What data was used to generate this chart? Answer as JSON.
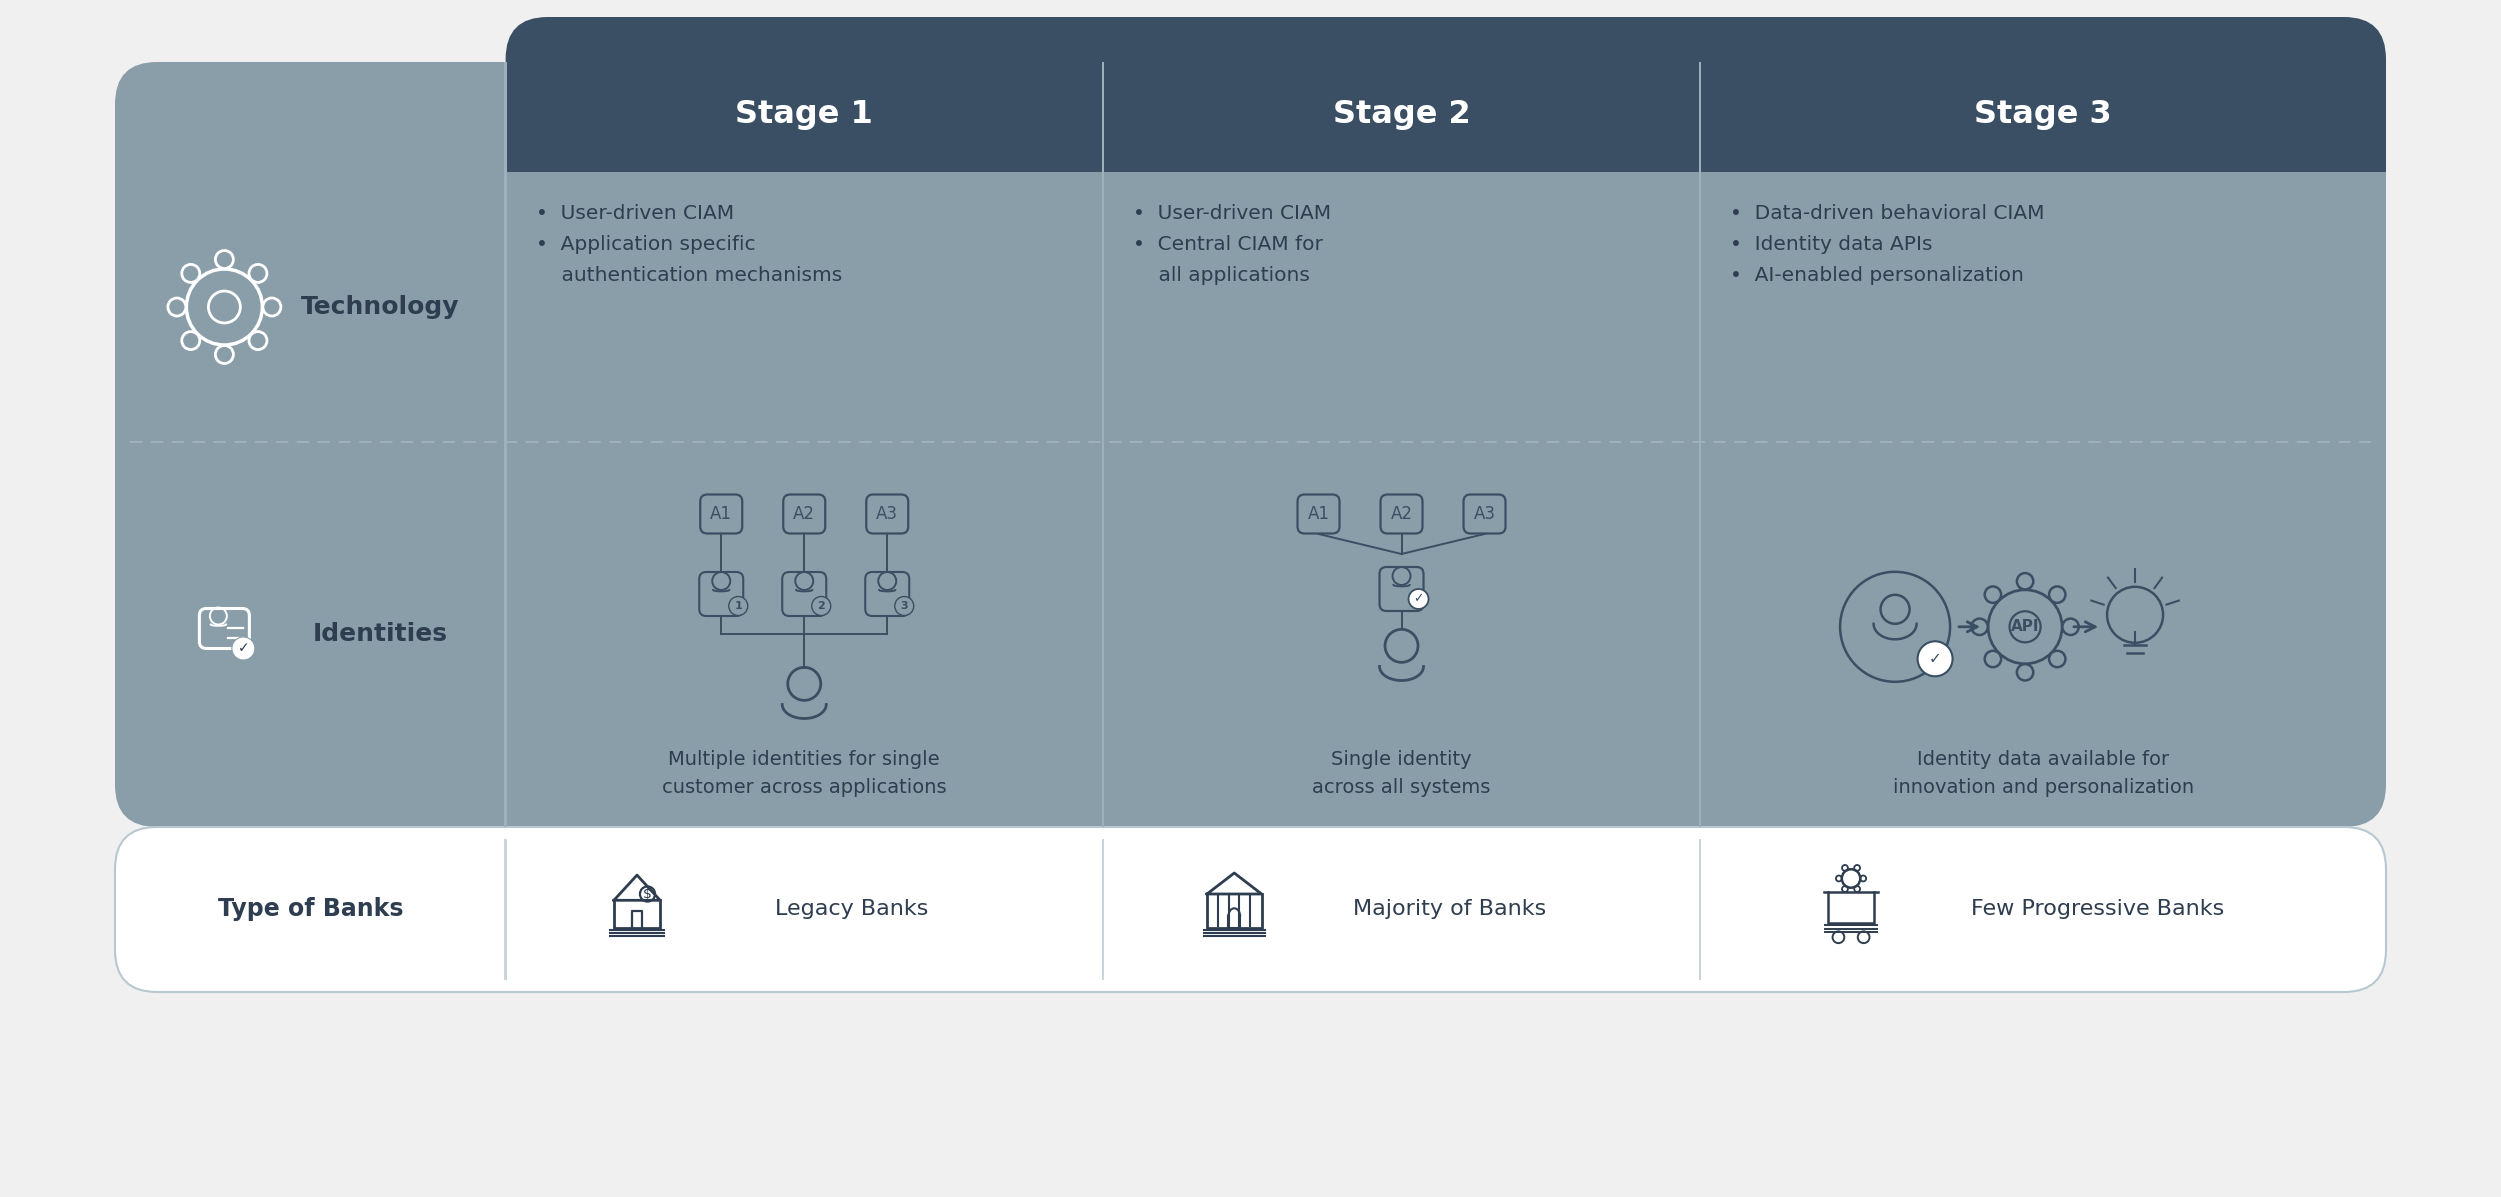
{
  "bg_color": "#f0f0f0",
  "header_bg": "#3a4f63",
  "cell_bg": "#8a9eaa",
  "bottom_bg": "#ffffff",
  "header_text_color": "#ffffff",
  "dark_text": "#2e3d4f",
  "icon_color": "#3a4f63",
  "separator_color": "#9db0bb",
  "dashed_color": "#9db0bb",
  "stages": [
    "Stage 1",
    "Stage 2",
    "Stage 3"
  ],
  "tech_s1": "•  User-driven CIAM\n•  Application specific\n    authentication mechanisms",
  "tech_s2": "•  User-driven CIAM\n•  Central CIAM for\n    all applications",
  "tech_s3": "•  Data-driven behavioral CIAM\n•  Identity data APIs\n•  AI-enabled personalization",
  "ident_cap_s1": "Multiple identities for single\ncustomer across applications",
  "ident_cap_s2": "Single identity\nacross all systems",
  "ident_cap_s3": "Identity data available for\ninnovation and personalization",
  "bank_label": "Type of Banks",
  "bank_s1_label": "Legacy Banks",
  "bank_s2_label": "Majority of Banks",
  "bank_s3_label": "Few Progressive Banks",
  "row_tech_label": "Technology",
  "row_ident_label": "Identities"
}
